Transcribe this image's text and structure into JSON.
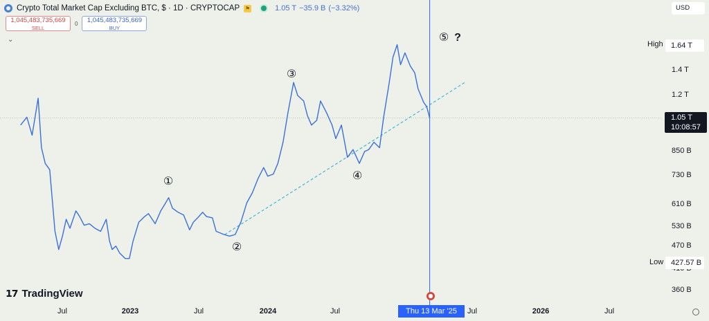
{
  "header": {
    "title": "Crypto Total Market Cap Excluding BTC, $ · 1D · CRYPTOCAP",
    "last_value": "1.05 T",
    "change_abs": "−35.9 B",
    "change_pct": "(−3.32%)"
  },
  "trade": {
    "sell_price": "1,045,483,735,669",
    "sell_label": "SELL",
    "buy_price": "1,045,483,735,669",
    "buy_label": "BUY",
    "spread": "0"
  },
  "currency": "USD",
  "price_scale": {
    "ticks": [
      {
        "label": "1.4 T"
      },
      {
        "label": "1.2 T"
      },
      {
        "label": "850 B"
      },
      {
        "label": "730 B"
      },
      {
        "label": "610 B"
      },
      {
        "label": "530 B"
      },
      {
        "label": "470 B"
      },
      {
        "label": "410 B"
      },
      {
        "label": "360 B"
      }
    ],
    "high_label": "High",
    "high_value": "1.64 T",
    "low_label": "Low",
    "low_value": "427.57 B",
    "current_value": "1.05 T",
    "countdown": "10:08:57"
  },
  "time_scale": {
    "ticks": [
      {
        "label": "Jul",
        "bold": false
      },
      {
        "label": "2023",
        "bold": true
      },
      {
        "label": "Jul",
        "bold": false
      },
      {
        "label": "2024",
        "bold": true
      },
      {
        "label": "Jul",
        "bold": false
      },
      {
        "label": "Jul",
        "bold": false
      },
      {
        "label": "2026",
        "bold": true
      },
      {
        "label": "Jul",
        "bold": false
      }
    ],
    "crosshair_date": "Thu 13 Mar '25"
  },
  "waves": [
    {
      "label": "①"
    },
    {
      "label": "②"
    },
    {
      "label": "③"
    },
    {
      "label": "④"
    },
    {
      "label": "⑤"
    }
  ],
  "wave5_question": "?",
  "branding": "TradingView",
  "colors": {
    "line": "#3a6fdb",
    "trend": "#3fb6d6",
    "crosshair": "#2962ff",
    "bg": "#edf1ea"
  },
  "chart_data": {
    "type": "line",
    "title": "Crypto Total Market Cap Excluding BTC, $ · 1D · CRYPTOCAP",
    "xlabel": "",
    "ylabel": "",
    "log_scale": true,
    "ylim": [
      340,
      1900
    ],
    "xlim": [
      "2022-03-15",
      "2026-12-31"
    ],
    "series": [
      {
        "values": [
          [
            "2022-03-15",
            1000
          ],
          [
            "2022-04-01",
            1050
          ],
          [
            "2022-04-15",
            940
          ],
          [
            "2022-05-01",
            1180
          ],
          [
            "2022-05-10",
            870
          ],
          [
            "2022-05-20",
            790
          ],
          [
            "2022-06-01",
            760
          ],
          [
            "2022-06-15",
            520
          ],
          [
            "2022-06-25",
            465
          ],
          [
            "2022-07-05",
            505
          ],
          [
            "2022-07-15",
            560
          ],
          [
            "2022-07-25",
            530
          ],
          [
            "2022-08-10",
            590
          ],
          [
            "2022-08-20",
            570
          ],
          [
            "2022-09-01",
            540
          ],
          [
            "2022-09-15",
            545
          ],
          [
            "2022-09-30",
            530
          ],
          [
            "2022-10-15",
            520
          ],
          [
            "2022-10-30",
            560
          ],
          [
            "2022-11-08",
            490
          ],
          [
            "2022-11-15",
            465
          ],
          [
            "2022-11-25",
            475
          ],
          [
            "2022-12-05",
            455
          ],
          [
            "2022-12-20",
            440
          ],
          [
            "2022-12-31",
            440
          ],
          [
            "2023-01-10",
            490
          ],
          [
            "2023-01-25",
            550
          ],
          [
            "2023-02-10",
            570
          ],
          [
            "2023-02-20",
            580
          ],
          [
            "2023-03-10",
            545
          ],
          [
            "2023-03-25",
            590
          ],
          [
            "2023-04-05",
            615
          ],
          [
            "2023-04-15",
            640
          ],
          [
            "2023-04-25",
            600
          ],
          [
            "2023-05-10",
            585
          ],
          [
            "2023-05-25",
            575
          ],
          [
            "2023-06-10",
            525
          ],
          [
            "2023-06-20",
            550
          ],
          [
            "2023-07-05",
            570
          ],
          [
            "2023-07-15",
            585
          ],
          [
            "2023-07-25",
            570
          ],
          [
            "2023-08-10",
            565
          ],
          [
            "2023-08-20",
            520
          ],
          [
            "2023-09-10",
            510
          ],
          [
            "2023-09-25",
            505
          ],
          [
            "2023-10-10",
            510
          ],
          [
            "2023-10-25",
            550
          ],
          [
            "2023-11-10",
            620
          ],
          [
            "2023-11-25",
            660
          ],
          [
            "2023-12-10",
            720
          ],
          [
            "2023-12-25",
            770
          ],
          [
            "2024-01-05",
            730
          ],
          [
            "2024-01-20",
            740
          ],
          [
            "2024-02-01",
            790
          ],
          [
            "2024-02-15",
            900
          ],
          [
            "2024-02-28",
            1080
          ],
          [
            "2024-03-14",
            1300
          ],
          [
            "2024-03-25",
            1200
          ],
          [
            "2024-04-10",
            1160
          ],
          [
            "2024-04-20",
            1060
          ],
          [
            "2024-05-01",
            1000
          ],
          [
            "2024-05-15",
            1030
          ],
          [
            "2024-05-25",
            1160
          ],
          [
            "2024-06-10",
            1080
          ],
          [
            "2024-06-25",
            1000
          ],
          [
            "2024-07-05",
            920
          ],
          [
            "2024-07-20",
            1000
          ],
          [
            "2024-08-05",
            820
          ],
          [
            "2024-08-20",
            860
          ],
          [
            "2024-09-06",
            790
          ],
          [
            "2024-09-20",
            850
          ],
          [
            "2024-10-01",
            860
          ],
          [
            "2024-10-15",
            900
          ],
          [
            "2024-10-30",
            870
          ],
          [
            "2024-11-10",
            1050
          ],
          [
            "2024-11-25",
            1300
          ],
          [
            "2024-12-05",
            1520
          ],
          [
            "2024-12-16",
            1640
          ],
          [
            "2024-12-25",
            1450
          ],
          [
            "2025-01-06",
            1560
          ],
          [
            "2025-01-20",
            1440
          ],
          [
            "2025-02-01",
            1380
          ],
          [
            "2025-02-10",
            1250
          ],
          [
            "2025-02-25",
            1150
          ],
          [
            "2025-03-05",
            1120
          ],
          [
            "2025-03-13",
            1045
          ]
        ]
      }
    ],
    "trendline": [
      [
        "2023-09-12",
        510
      ],
      [
        "2025-06-15",
        1300
      ]
    ],
    "annotations": [
      "①",
      "②",
      "③",
      "④",
      "⑤",
      "?"
    ],
    "grid": false
  }
}
